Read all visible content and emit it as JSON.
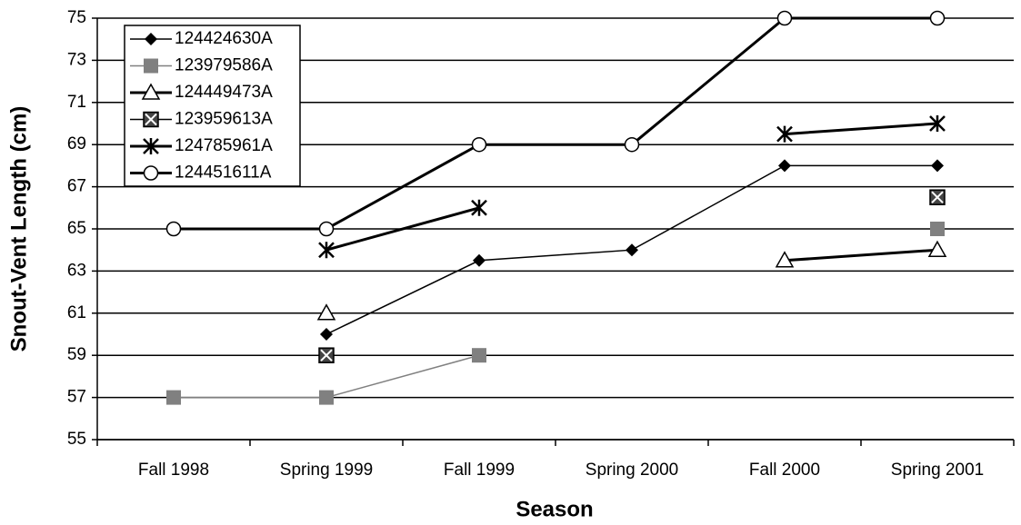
{
  "chart_data": {
    "type": "line",
    "x_label": "Season",
    "y_label": "Snout-Vent Length (cm)",
    "categories": [
      "Fall 1998",
      "Spring 1999",
      "Fall 1999",
      "Spring 2000",
      "Fall 2000",
      "Spring 2001"
    ],
    "ylim": [
      55,
      75
    ],
    "yticks": [
      55,
      57,
      59,
      61,
      63,
      65,
      67,
      69,
      71,
      73,
      75
    ],
    "grid": true,
    "legend": "upper left",
    "series": [
      {
        "name": "124424630A",
        "color": "#000000",
        "marker": "diamond",
        "line_width": 1.5,
        "values": [
          null,
          60,
          63.5,
          64,
          68,
          68
        ]
      },
      {
        "name": "123979586A",
        "color": "#808080",
        "marker": "square",
        "line_width": 1.5,
        "values": [
          57,
          57,
          59,
          null,
          null,
          65
        ]
      },
      {
        "name": "124449473A",
        "color": "#000000",
        "marker": "triangle",
        "line_width": 3,
        "values": [
          null,
          61,
          null,
          null,
          63.5,
          64
        ]
      },
      {
        "name": "123959613A",
        "color": "#000000",
        "marker": "square-x",
        "line_width": 1.5,
        "values": [
          null,
          59,
          null,
          null,
          null,
          66.5
        ]
      },
      {
        "name": "124785961A",
        "color": "#000000",
        "marker": "asterisk",
        "line_width": 3,
        "values": [
          null,
          64,
          66,
          null,
          69.5,
          70
        ]
      },
      {
        "name": "124451611A",
        "color": "#000000",
        "marker": "circle",
        "line_width": 3,
        "values": [
          65,
          65,
          69,
          69,
          75,
          75
        ]
      }
    ]
  }
}
